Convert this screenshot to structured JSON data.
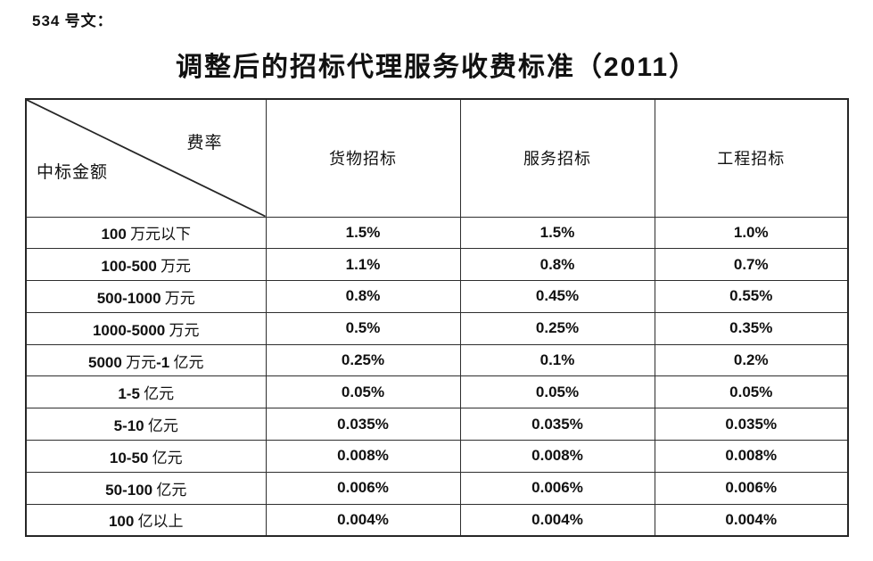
{
  "page": {
    "doc_label": "534 号文：",
    "title": "调整后的招标代理服务收费标准（2011）"
  },
  "table": {
    "corner": {
      "top_right_label": "费率",
      "bottom_left_label": "中标金额"
    },
    "columns": [
      "货物招标",
      "服务招标",
      "工程招标"
    ],
    "rows": [
      {
        "range": "100 万元以下",
        "values": [
          "1.5%",
          "1.5%",
          "1.0%"
        ]
      },
      {
        "range": "100-500 万元",
        "values": [
          "1.1%",
          "0.8%",
          "0.7%"
        ]
      },
      {
        "range": "500-1000 万元",
        "values": [
          "0.8%",
          "0.45%",
          "0.55%"
        ]
      },
      {
        "range": "1000-5000 万元",
        "values": [
          "0.5%",
          "0.25%",
          "0.35%"
        ]
      },
      {
        "range": "5000 万元-1 亿元",
        "values": [
          "0.25%",
          "0.1%",
          "0.2%"
        ]
      },
      {
        "range": "1-5 亿元",
        "values": [
          "0.05%",
          "0.05%",
          "0.05%"
        ]
      },
      {
        "range": "5-10 亿元",
        "values": [
          "0.035%",
          "0.035%",
          "0.035%"
        ]
      },
      {
        "range": "10-50 亿元",
        "values": [
          "0.008%",
          "0.008%",
          "0.008%"
        ]
      },
      {
        "range": "50-100 亿元",
        "values": [
          "0.006%",
          "0.006%",
          "0.006%"
        ]
      },
      {
        "range": "100 亿以上",
        "values": [
          "0.004%",
          "0.004%",
          "0.004%"
        ]
      }
    ],
    "border_color": "#2e2e2e",
    "text_color": "#111111"
  }
}
